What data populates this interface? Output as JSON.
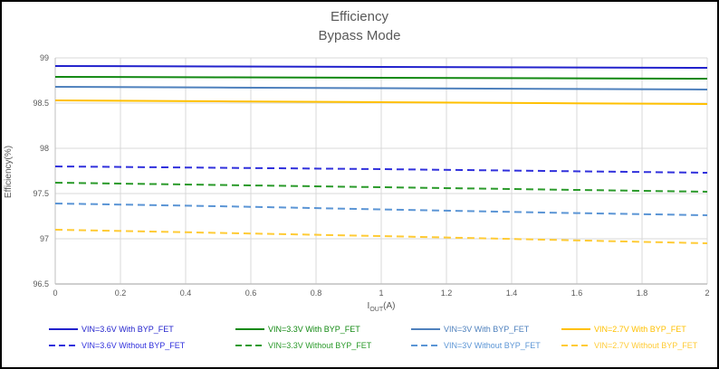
{
  "chart_data": {
    "type": "line",
    "title": "Efficiency",
    "subtitle": "Bypass Mode",
    "ylabel": "Efficiency(%)",
    "xlabel": {
      "base": "I",
      "sub": "OUT",
      "suffix": "(A)"
    },
    "xlim": [
      0,
      2
    ],
    "ylim": [
      96.5,
      99
    ],
    "x_ticks": [
      0,
      0.2,
      0.4,
      0.6,
      0.8,
      1,
      1.2,
      1.4,
      1.6,
      1.8,
      2
    ],
    "x_tick_labels": [
      "0",
      "0.2",
      "0.4",
      "0.6",
      "0.8",
      "1",
      "1.2",
      "1.4",
      "1.6",
      "1.8",
      "2"
    ],
    "y_ticks": [
      96.5,
      97,
      97.5,
      98,
      98.5,
      99
    ],
    "y_tick_labels": [
      "96.5",
      "97",
      "97.5",
      "98",
      "98.5",
      "99"
    ],
    "grid": true,
    "legend_position": "bottom",
    "x": [
      0,
      0.5,
      1,
      1.5,
      2
    ],
    "series": [
      {
        "name": "VIN=3.6V With BYP_FET",
        "color": "#2222CC",
        "style": "solid",
        "values": [
          98.91,
          98.905,
          98.9,
          98.895,
          98.89
        ]
      },
      {
        "name": "VIN=3.3V With BYP_FET",
        "color": "#128912",
        "style": "solid",
        "values": [
          98.79,
          98.785,
          98.78,
          98.775,
          98.77
        ]
      },
      {
        "name": "VIN=3V With BYP_FET",
        "color": "#4F81BD",
        "style": "solid",
        "values": [
          98.68,
          98.672,
          98.665,
          98.658,
          98.65
        ]
      },
      {
        "name": "VIN=2.7V With BYP_FET",
        "color": "#FFC000",
        "style": "solid",
        "values": [
          98.53,
          98.52,
          98.51,
          98.5,
          98.49
        ]
      },
      {
        "name": "VIN=3.6V Without BYP_FET",
        "color": "#3030DC",
        "style": "dashed",
        "values": [
          97.8,
          97.785,
          97.77,
          97.75,
          97.73
        ]
      },
      {
        "name": "VIN=3.3V Without BYP_FET",
        "color": "#2A9A2A",
        "style": "dashed",
        "values": [
          97.62,
          97.595,
          97.57,
          97.545,
          97.52
        ]
      },
      {
        "name": "VIN=3V Without BYP_FET",
        "color": "#5B95D5",
        "style": "dashed",
        "values": [
          97.39,
          97.36,
          97.325,
          97.29,
          97.26
        ]
      },
      {
        "name": "VIN=2.7V Without BYP_FET",
        "color": "#FFCB35",
        "style": "dashed",
        "values": [
          97.1,
          97.065,
          97.03,
          96.99,
          96.95
        ]
      }
    ],
    "axis_colors": {
      "grid": "#D9D9D9",
      "axis": "#BFBFBF",
      "tick_text": "#595959",
      "title_text": "#595959"
    }
  }
}
